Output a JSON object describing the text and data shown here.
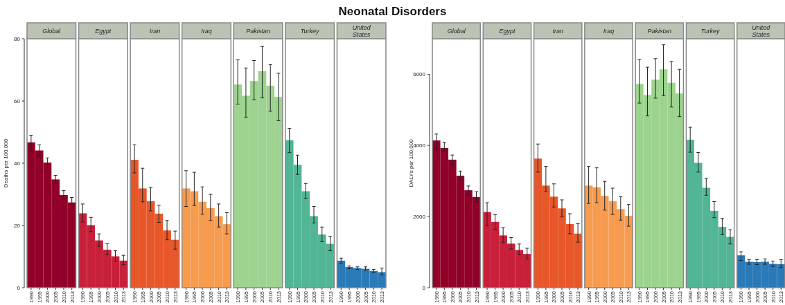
{
  "chart_data": [
    {
      "type": "bar",
      "title": "Global",
      "annotations": [
        "Neonatal Disorders"
      ],
      "ylabel": "Deaths per 100,000",
      "categories": [
        "1990",
        "1995",
        "2000",
        "2005",
        "2010",
        "2013"
      ],
      "values": [
        46.7,
        44.1,
        40.2,
        34.8,
        29.8,
        27.4
      ],
      "errors": [
        [
          43.9,
          49.0
        ],
        [
          42.2,
          45.9
        ],
        [
          38.6,
          41.7
        ],
        [
          33.6,
          36.1
        ],
        [
          28.4,
          31.2
        ],
        [
          25.8,
          29.0
        ]
      ],
      "color": "#900028",
      "ylim": [
        0,
        80
      ],
      "yticks": [
        0,
        20,
        40,
        60,
        80
      ]
    },
    {
      "type": "bar",
      "title": "Egypt",
      "categories": [
        "1990",
        "1995",
        "2000",
        "2005",
        "2010",
        "2013"
      ],
      "values": [
        23.9,
        20.1,
        15.2,
        12.2,
        10.1,
        8.7
      ],
      "errors": [
        [
          21.1,
          26.9
        ],
        [
          18.0,
          22.6
        ],
        [
          13.3,
          17.3
        ],
        [
          10.6,
          14.1
        ],
        [
          8.5,
          11.9
        ],
        [
          7.4,
          10.4
        ]
      ],
      "color": "#c8203a",
      "ylim": [
        0,
        80
      ],
      "tick_labels": "x"
    },
    {
      "type": "bar",
      "title": "Iran",
      "categories": [
        "1990",
        "1995",
        "2000",
        "2005",
        "2010",
        "2013"
      ],
      "values": [
        41.1,
        31.9,
        27.8,
        23.8,
        18.4,
        15.4
      ],
      "errors": [
        [
          36.9,
          45.9
        ],
        [
          27.6,
          38.4
        ],
        [
          24.7,
          32.2
        ],
        [
          21.0,
          26.5
        ],
        [
          15.4,
          21.6
        ],
        [
          12.4,
          18.2
        ]
      ],
      "color": "#e8572a",
      "ylim": [
        0,
        80
      ],
      "tick_labels": "x"
    },
    {
      "type": "bar",
      "title": "Iraq",
      "categories": [
        "1990",
        "1995",
        "2000",
        "2005",
        "2010",
        "2013"
      ],
      "values": [
        31.9,
        31.0,
        27.6,
        25.6,
        23.0,
        20.4
      ],
      "errors": [
        [
          26.1,
          37.6
        ],
        [
          26.4,
          37.1
        ],
        [
          23.6,
          32.4
        ],
        [
          21.6,
          30.0
        ],
        [
          19.5,
          26.9
        ],
        [
          17.3,
          24.1
        ]
      ],
      "color": "#f79c4f",
      "ylim": [
        0,
        80
      ],
      "tick_labels": "x"
    },
    {
      "type": "bar",
      "title": "Pakistan",
      "categories": [
        "1990",
        "1995",
        "2000",
        "2005",
        "2010",
        "2013"
      ],
      "values": [
        65.3,
        61.7,
        66.4,
        69.6,
        64.9,
        61.3
      ],
      "errors": [
        [
          59.0,
          73.2
        ],
        [
          54.8,
          70.6
        ],
        [
          60.4,
          73.0
        ],
        [
          61.0,
          77.5
        ],
        [
          56.7,
          71.7
        ],
        [
          53.7,
          68.9
        ]
      ],
      "color": "#9dd38f",
      "ylim": [
        0,
        80
      ],
      "tick_labels": "x"
    },
    {
      "type": "bar",
      "title": "Turkey",
      "categories": [
        "1990",
        "1995",
        "2000",
        "2005",
        "2010",
        "2013"
      ],
      "values": [
        47.4,
        39.5,
        31.0,
        23.0,
        17.1,
        14.1
      ],
      "errors": [
        [
          43.4,
          51.2
        ],
        [
          36.4,
          42.6
        ],
        [
          28.6,
          33.5
        ],
        [
          20.8,
          26.1
        ],
        [
          14.8,
          19.5
        ],
        [
          11.9,
          16.5
        ]
      ],
      "color": "#52b696",
      "ylim": [
        0,
        80
      ],
      "tick_labels": "x"
    },
    {
      "type": "bar",
      "title": "United States",
      "categories": [
        "1990",
        "1995",
        "2000",
        "2005",
        "2010",
        "2013"
      ],
      "values": [
        8.7,
        6.7,
        6.3,
        6.1,
        5.4,
        5.0
      ],
      "errors": [
        [
          7.9,
          9.5
        ],
        [
          6.1,
          7.0
        ],
        [
          5.9,
          6.7
        ],
        [
          5.6,
          6.7
        ],
        [
          4.8,
          5.9
        ],
        [
          4.1,
          6.3
        ]
      ],
      "color": "#2a7ab8",
      "ylim": [
        0,
        80
      ],
      "tick_labels": "x"
    },
    {
      "type": "bar",
      "title": "Global",
      "ylabel": "DALYs per 100,000",
      "categories": [
        "1990",
        "1995",
        "2000",
        "2005",
        "2010",
        "2013"
      ],
      "values": [
        4140,
        3930,
        3600,
        3150,
        2740,
        2550
      ],
      "errors": [
        [
          3880,
          4320
        ],
        [
          3850,
          4090
        ],
        [
          3460,
          3730
        ],
        [
          3040,
          3280
        ],
        [
          2600,
          2860
        ],
        [
          2410,
          2700
        ]
      ],
      "color": "#900028",
      "ylim": [
        0,
        7000
      ],
      "yticks": [
        0,
        2000,
        4000,
        6000
      ]
    },
    {
      "type": "bar",
      "title": "Egypt",
      "categories": [
        "1990",
        "1995",
        "2000",
        "2005",
        "2010",
        "2013"
      ],
      "values": [
        2130,
        1850,
        1470,
        1240,
        1060,
        950
      ],
      "errors": [
        [
          1750,
          2390
        ],
        [
          1640,
          2050
        ],
        [
          1270,
          1690
        ],
        [
          1090,
          1410
        ],
        [
          930,
          1230
        ],
        [
          810,
          1110
        ]
      ],
      "color": "#c8203a",
      "ylim": [
        0,
        7000
      ],
      "tick_labels": "x"
    },
    {
      "type": "bar",
      "title": "Iran",
      "categories": [
        "1990",
        "1995",
        "2000",
        "2005",
        "2010",
        "2013"
      ],
      "values": [
        3630,
        2870,
        2560,
        2230,
        1790,
        1520
      ],
      "errors": [
        [
          3250,
          4040
        ],
        [
          2700,
          3410
        ],
        [
          2270,
          2920
        ],
        [
          1990,
          2470
        ],
        [
          1520,
          2080
        ],
        [
          1280,
          1800
        ]
      ],
      "color": "#e8572a",
      "ylim": [
        0,
        7000
      ],
      "tick_labels": "x"
    },
    {
      "type": "bar",
      "title": "Iraq",
      "categories": [
        "1990",
        "1995",
        "2000",
        "2005",
        "2010",
        "2013"
      ],
      "values": [
        2870,
        2820,
        2580,
        2430,
        2210,
        2020
      ],
      "errors": [
        [
          2370,
          3410
        ],
        [
          2390,
          3370
        ],
        [
          2180,
          2990
        ],
        [
          2060,
          2800
        ],
        [
          1900,
          2560
        ],
        [
          1730,
          2340
        ]
      ],
      "color": "#f79c4f",
      "ylim": [
        0,
        7000
      ],
      "tick_labels": "x"
    },
    {
      "type": "bar",
      "title": "Pakistan",
      "categories": [
        "1990",
        "1995",
        "2000",
        "2005",
        "2010",
        "2013"
      ],
      "values": [
        5730,
        5420,
        5850,
        6140,
        5760,
        5460
      ],
      "errors": [
        [
          5190,
          6420
        ],
        [
          4830,
          6200
        ],
        [
          5330,
          6440
        ],
        [
          5400,
          6830
        ],
        [
          5080,
          6360
        ],
        [
          4810,
          6140
        ]
      ],
      "color": "#9dd38f",
      "ylim": [
        0,
        7000
      ],
      "tick_labels": "x"
    },
    {
      "type": "bar",
      "title": "Turkey",
      "categories": [
        "1990",
        "1995",
        "2000",
        "2005",
        "2010",
        "2013"
      ],
      "values": [
        4160,
        3510,
        2810,
        2160,
        1710,
        1430
      ],
      "errors": [
        [
          3810,
          4510
        ],
        [
          3250,
          3800
        ],
        [
          2600,
          3070
        ],
        [
          1970,
          2420
        ],
        [
          1490,
          1950
        ],
        [
          1230,
          1630
        ]
      ],
      "color": "#52b696",
      "ylim": [
        0,
        7000
      ],
      "tick_labels": "x"
    },
    {
      "type": "bar",
      "title": "United States",
      "categories": [
        "1990",
        "1995",
        "2000",
        "2005",
        "2010",
        "2013"
      ],
      "values": [
        910,
        730,
        720,
        730,
        670,
        660
      ],
      "errors": [
        [
          770,
          1010
        ],
        [
          660,
          790
        ],
        [
          650,
          790
        ],
        [
          660,
          810
        ],
        [
          600,
          750
        ],
        [
          570,
          790
        ]
      ],
      "color": "#2a7ab8",
      "ylim": [
        0,
        7000
      ],
      "tick_labels": "x"
    }
  ]
}
